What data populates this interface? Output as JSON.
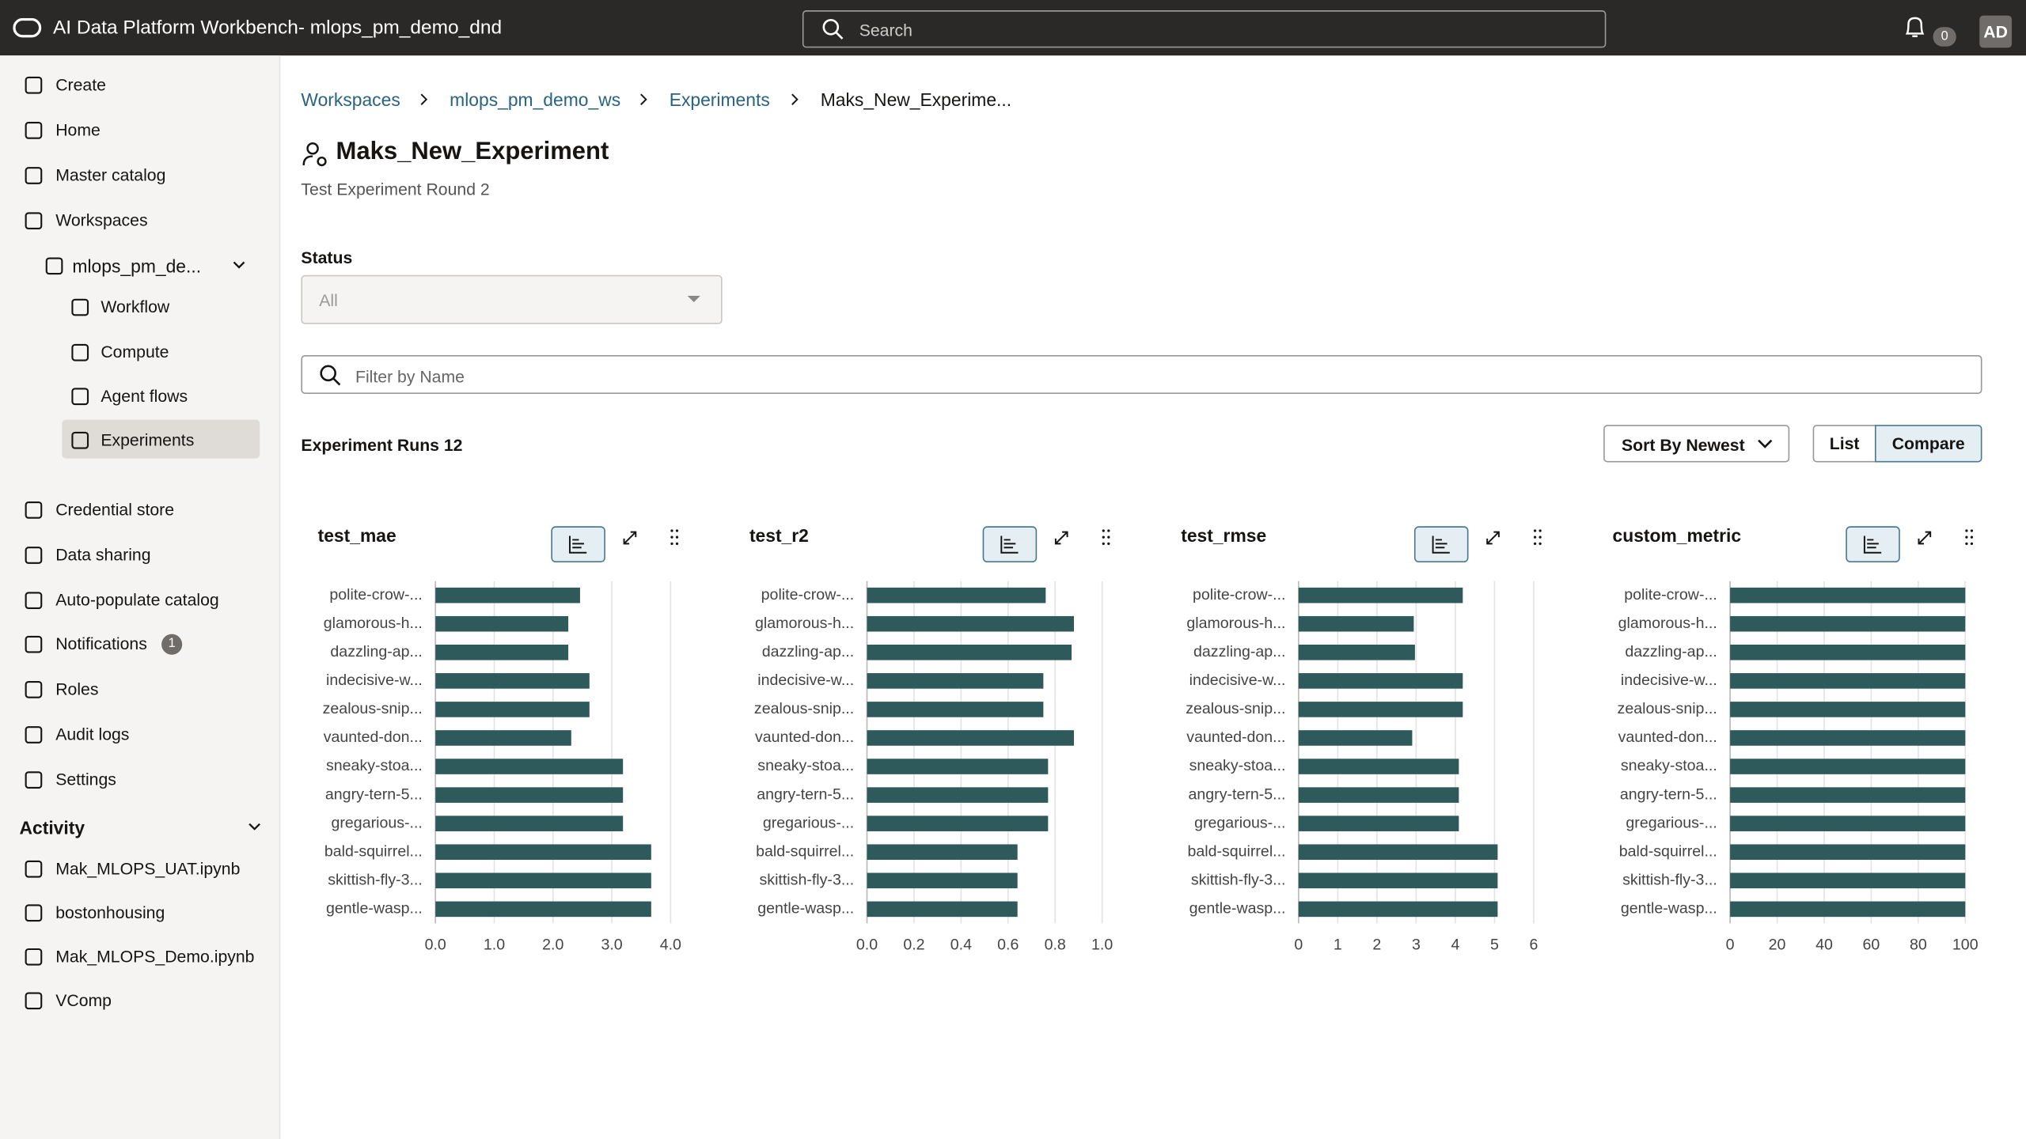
{
  "header": {
    "title": "AI Data Platform Workbench- mlops_pm_demo_dnd",
    "search": "Search",
    "notification_count": "0",
    "avatar": "AD"
  },
  "sidebar": {
    "nav": [
      "Create",
      "Home",
      "Master catalog",
      "Workspaces"
    ],
    "workspace": "mlops_pm_de...",
    "workspace_items": [
      "Workflow",
      "Compute",
      "Agent flows",
      "Experiments"
    ],
    "nav2": [
      "Credential store",
      "Data sharing",
      "Auto-populate catalog",
      "Notifications",
      "Roles",
      "Audit logs",
      "Settings"
    ],
    "notifications_badge": "1",
    "activity_title": "Activity",
    "activity": [
      "Mak_MLOPS_UAT.ipynb",
      "bostonhousing",
      "Mak_MLOPS_Demo.ipynb",
      "VComp"
    ]
  },
  "breadcrumb": [
    "Workspaces",
    "mlops_pm_demo_ws",
    "Experiments",
    "Maks_New_Experime..."
  ],
  "page": {
    "title": "Maks_New_Experiment",
    "subtitle": "Test Experiment Round 2",
    "status_label": "Status",
    "status_value": "All",
    "filter": "Filter by Name",
    "runs": "Experiment Runs 12",
    "sort": "Sort By Newest",
    "list": "List",
    "compare": "Compare"
  },
  "chart_data": [
    {
      "type": "bar",
      "orientation": "horizontal",
      "title": "test_mae",
      "color": "#2f5a5b",
      "grid": true,
      "categories": [
        "polite-crow-...",
        "glamorous-h...",
        "dazzling-ap...",
        "indecisive-w...",
        "zealous-snip...",
        "vaunted-don...",
        "sneaky-stoa...",
        "angry-tern-5...",
        "gregarious-...",
        "bald-squirrel...",
        "skittish-fly-3...",
        "gentle-wasp..."
      ],
      "values": [
        2.46,
        2.26,
        2.26,
        2.62,
        2.62,
        2.31,
        3.19,
        3.19,
        3.19,
        3.67,
        3.67,
        3.67
      ],
      "xlim": [
        0,
        4
      ],
      "xticks": [
        {
          "value": 0,
          "label": "0.0"
        },
        {
          "value": 1,
          "label": "1.0"
        },
        {
          "value": 2,
          "label": "2.0"
        },
        {
          "value": 3,
          "label": "3.0"
        },
        {
          "value": 4,
          "label": "4.0"
        }
      ]
    },
    {
      "type": "bar",
      "orientation": "horizontal",
      "title": "test_r2",
      "color": "#2f5a5b",
      "grid": true,
      "categories": [
        "polite-crow-...",
        "glamorous-h...",
        "dazzling-ap...",
        "indecisive-w...",
        "zealous-snip...",
        "vaunted-don...",
        "sneaky-stoa...",
        "angry-tern-5...",
        "gregarious-...",
        "bald-squirrel...",
        "skittish-fly-3...",
        "gentle-wasp..."
      ],
      "values": [
        0.76,
        0.88,
        0.87,
        0.75,
        0.75,
        0.88,
        0.77,
        0.77,
        0.77,
        0.64,
        0.64,
        0.64
      ],
      "xlim": [
        0,
        1
      ],
      "xticks": [
        {
          "value": 0,
          "label": "0.0"
        },
        0.2,
        0.4,
        0.6,
        0.8,
        {
          "value": 1,
          "label": "1.0"
        }
      ]
    },
    {
      "type": "bar",
      "orientation": "horizontal",
      "title": "test_rmse",
      "color": "#2f5a5b",
      "grid": true,
      "categories": [
        "polite-crow-...",
        "glamorous-h...",
        "dazzling-ap...",
        "indecisive-w...",
        "zealous-snip...",
        "vaunted-don...",
        "sneaky-stoa...",
        "angry-tern-5...",
        "gregarious-...",
        "bald-squirrel...",
        "skittish-fly-3...",
        "gentle-wasp..."
      ],
      "values": [
        4.19,
        2.94,
        2.97,
        4.19,
        4.19,
        2.9,
        4.09,
        4.09,
        4.09,
        5.08,
        5.08,
        5.08
      ],
      "xlim": [
        0,
        6
      ],
      "xticks": [
        0,
        1,
        2,
        3,
        4,
        5,
        6
      ]
    },
    {
      "type": "bar",
      "orientation": "horizontal",
      "title": "custom_metric",
      "color": "#2f5a5b",
      "grid": true,
      "categories": [
        "polite-crow-...",
        "glamorous-h...",
        "dazzling-ap...",
        "indecisive-w...",
        "zealous-snip...",
        "vaunted-don...",
        "sneaky-stoa...",
        "angry-tern-5...",
        "gregarious-...",
        "bald-squirrel...",
        "skittish-fly-3...",
        "gentle-wasp..."
      ],
      "values": [
        100,
        100,
        100,
        100,
        100,
        100,
        100,
        100,
        100,
        100,
        100,
        100
      ],
      "xlim": [
        0,
        100
      ],
      "xticks": [
        0,
        20,
        40,
        60,
        80,
        100
      ]
    }
  ]
}
